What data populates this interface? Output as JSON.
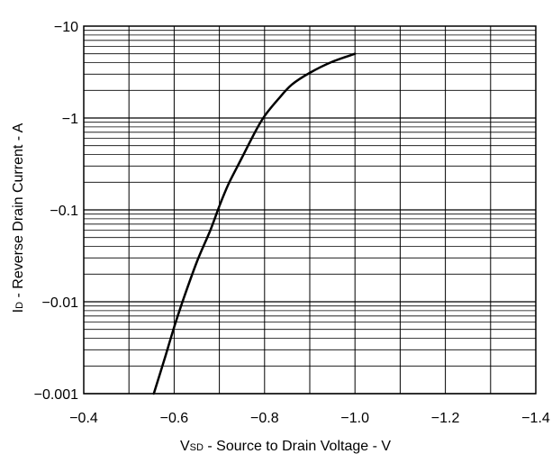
{
  "chart_data": {
    "type": "line",
    "title": "",
    "xlabel": {
      "main": "V",
      "sub": "SD",
      "rest": " - Source to Drain Voltage - V"
    },
    "ylabel": {
      "main": "I",
      "sub": "D",
      "rest": " - Reverse Drain Current - A"
    },
    "xlim": [
      -0.4,
      -1.4
    ],
    "ylim": [
      -0.001,
      -10
    ],
    "yscale": "log",
    "grid": true,
    "x_ticks": [
      -0.4,
      -0.6,
      -0.8,
      -1.0,
      -1.2,
      -1.4
    ],
    "x_tick_labels": [
      "−0.4",
      "−0.6",
      "−0.8",
      "−1.0",
      "−1.2",
      "−1.4"
    ],
    "y_ticks": [
      -0.001,
      -0.01,
      -0.1,
      -1,
      -10
    ],
    "y_tick_labels": [
      "−0.001",
      "−0.01",
      "−0.1",
      "−1",
      "−10"
    ],
    "series": [
      {
        "name": "",
        "x": [
          -0.555,
          -0.58,
          -0.6,
          -0.62,
          -0.65,
          -0.68,
          -0.7,
          -0.72,
          -0.75,
          -0.78,
          -0.8,
          -0.83,
          -0.86,
          -0.9,
          -0.95,
          -1.0
        ],
        "y": [
          -0.001,
          -0.0025,
          -0.0053,
          -0.0105,
          -0.027,
          -0.06,
          -0.11,
          -0.19,
          -0.37,
          -0.72,
          -1.05,
          -1.6,
          -2.3,
          -3.1,
          -4.1,
          -5.0
        ]
      }
    ]
  }
}
